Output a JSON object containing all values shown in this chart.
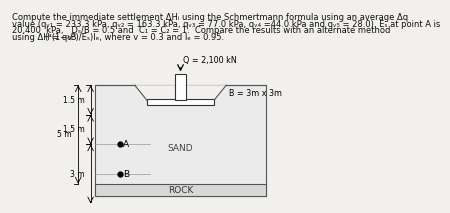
{
  "bg_color": "#f2f0ec",
  "soil_color": "#ebebeb",
  "rock_color": "#d8d8d8",
  "text_color": "#111111",
  "Q_label": "Q = 2,100 kN",
  "B_label": "B = 3m x 3m",
  "sand_label": "SAND",
  "rock_label": "ROCK",
  "point_A_label": "A",
  "point_B_label": "B",
  "dim1": "1.5 m",
  "dim2": "1.5 m",
  "dim3": "3 m",
  "dim4": "5 m",
  "line1": "Compute the immediate settlement ΔHᵢ using the Schmertmann formula using an average Δq",
  "line2": "value (qᵥ₁ = 233.3 kPa, qᵥ₂ = 163.3 kPa, qᵥ₃ = 77.0 kPa, qᵥ₄ =44.0 kPa and qᵥ₅ = 28.0). Eₛ at point A is",
  "line3": "20,400  kPa,   Dₛ/B = 0.5 and  C₁ = C₂ = 1.  Compare the results with an alternate method",
  "line4a": "using ΔH = q₀B",
  "line4b": "(⁴(1−v²)/Eₛ)Iₑ, where v = 0.3 and Iₑ = 0.95.",
  "fs_text": 6.0,
  "fs_label": 5.8,
  "fs_dim": 5.5,
  "fs_sand": 6.5,
  "fs_point": 6.5
}
